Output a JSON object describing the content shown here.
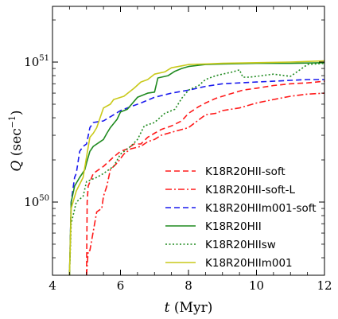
{
  "chart_data": {
    "type": "line",
    "title": "",
    "xlabel": "t (Myr)",
    "ylabel": "Q (sec−1)",
    "x_tick_labels": [
      "4",
      "6",
      "8",
      "10",
      "12"
    ],
    "x_ticks": [
      4,
      6,
      8,
      10,
      12
    ],
    "y_tick_labels": [
      {
        "base": "10",
        "exp": "50",
        "value": 1e+50
      },
      {
        "base": "10",
        "exp": "51",
        "value": 1e+51
      }
    ],
    "xlim": [
      4,
      12
    ],
    "ylim": [
      3e+49,
      2.5e+51
    ],
    "y_scale": "log",
    "grid": false,
    "legend_position": "lower-right",
    "series": [
      {
        "name": "K18R20HII-soft",
        "color": "#ff1a1a",
        "style": "dashed",
        "points": [
          [
            5.0,
            3e+49
          ],
          [
            5.02,
            1e+50
          ],
          [
            5.05,
            1.3e+50
          ],
          [
            5.2,
            1.6e+50
          ],
          [
            5.5,
            1.8e+50
          ],
          [
            5.8,
            2.1e+50
          ],
          [
            6.0,
            2.3e+50
          ],
          [
            6.2,
            2.4e+50
          ],
          [
            6.4,
            2.6e+50
          ],
          [
            6.6,
            2.6e+50
          ],
          [
            6.8,
            2.9e+50
          ],
          [
            7.0,
            3.1e+50
          ],
          [
            7.2,
            3.3e+50
          ],
          [
            7.5,
            3.5e+50
          ],
          [
            7.8,
            3.8e+50
          ],
          [
            8.0,
            4.3e+50
          ],
          [
            8.3,
            4.8e+50
          ],
          [
            8.5,
            5.1e+50
          ],
          [
            8.8,
            5.5e+50
          ],
          [
            9.0,
            5.7e+50
          ],
          [
            9.3,
            6e+50
          ],
          [
            9.6,
            6.3e+50
          ],
          [
            10.0,
            6.5e+50
          ],
          [
            10.5,
            6.8e+50
          ],
          [
            11.0,
            7e+50
          ],
          [
            11.5,
            7.1e+50
          ],
          [
            12.0,
            7.3e+50
          ]
        ]
      },
      {
        "name": "K18R20HII-soft-L",
        "color": "#ff1a1a",
        "style": "dashdot",
        "points": [
          [
            5.0,
            3e+49
          ],
          [
            5.05,
            4.5e+49
          ],
          [
            5.1,
            4.5e+49
          ],
          [
            5.3,
            8.5e+49
          ],
          [
            5.45,
            9e+49
          ],
          [
            5.5,
            1.1e+50
          ],
          [
            5.6,
            1.3e+50
          ],
          [
            5.7,
            1.7e+50
          ],
          [
            5.9,
            1.9e+50
          ],
          [
            6.1,
            2.2e+50
          ],
          [
            6.3,
            2.4e+50
          ],
          [
            6.6,
            2.5e+50
          ],
          [
            6.8,
            2.7e+50
          ],
          [
            7.0,
            2.8e+50
          ],
          [
            7.2,
            3e+50
          ],
          [
            7.6,
            3.2e+50
          ],
          [
            8.0,
            3.4e+50
          ],
          [
            8.2,
            3.7e+50
          ],
          [
            8.5,
            4.2e+50
          ],
          [
            8.8,
            4.3e+50
          ],
          [
            9.0,
            4.5e+50
          ],
          [
            9.5,
            4.7e+50
          ],
          [
            10.0,
            5.1e+50
          ],
          [
            10.5,
            5.4e+50
          ],
          [
            11.0,
            5.7e+50
          ],
          [
            11.5,
            5.9e+50
          ],
          [
            12.0,
            6e+50
          ]
        ]
      },
      {
        "name": "K18R20HIIm001-soft",
        "color": "#1a1aee",
        "style": "dashed",
        "points": [
          [
            4.5,
            3e+49
          ],
          [
            4.55,
            1e+50
          ],
          [
            4.65,
            1.5e+50
          ],
          [
            4.7,
            1.6e+50
          ],
          [
            4.8,
            2.3e+50
          ],
          [
            4.9,
            2.5e+50
          ],
          [
            5.0,
            2.6e+50
          ],
          [
            5.1,
            3.4e+50
          ],
          [
            5.2,
            3.7e+50
          ],
          [
            5.5,
            3.8e+50
          ],
          [
            5.8,
            4.2e+50
          ],
          [
            6.0,
            4.5e+50
          ],
          [
            6.3,
            4.8e+50
          ],
          [
            6.6,
            5.1e+50
          ],
          [
            7.0,
            5.6e+50
          ],
          [
            7.5,
            6e+50
          ],
          [
            8.0,
            6.3e+50
          ],
          [
            8.5,
            6.7e+50
          ],
          [
            9.0,
            7e+50
          ],
          [
            9.5,
            7.1e+50
          ],
          [
            10.0,
            7.2e+50
          ],
          [
            10.5,
            7.3e+50
          ],
          [
            11.0,
            7.4e+50
          ],
          [
            11.5,
            7.5e+50
          ],
          [
            12.0,
            7.5e+50
          ]
        ]
      },
      {
        "name": "K18R20HII",
        "color": "#1f8a1f",
        "style": "solid",
        "points": [
          [
            4.5,
            3e+49
          ],
          [
            4.55,
            1e+50
          ],
          [
            4.65,
            1.3e+50
          ],
          [
            4.8,
            1.5e+50
          ],
          [
            4.95,
            1.7e+50
          ],
          [
            5.0,
            1.9e+50
          ],
          [
            5.1,
            2.3e+50
          ],
          [
            5.2,
            2.5e+50
          ],
          [
            5.5,
            2.8e+50
          ],
          [
            5.6,
            3.1e+50
          ],
          [
            5.7,
            3.4e+50
          ],
          [
            5.9,
            3.9e+50
          ],
          [
            6.0,
            4.4e+50
          ],
          [
            6.2,
            4.6e+50
          ],
          [
            6.5,
            5.6e+50
          ],
          [
            6.8,
            6e+50
          ],
          [
            7.0,
            6.1e+50
          ],
          [
            7.1,
            7.7e+50
          ],
          [
            7.4,
            8e+50
          ],
          [
            7.6,
            8.6e+50
          ],
          [
            7.8,
            9e+50
          ],
          [
            8.0,
            9.3e+50
          ],
          [
            8.5,
            9.6e+50
          ],
          [
            9.0,
            9.7e+50
          ],
          [
            10.0,
            9.8e+50
          ],
          [
            11.0,
            9.8e+50
          ],
          [
            12.0,
            9.9e+50
          ]
        ]
      },
      {
        "name": "K18R20HIIsw",
        "color": "#1f8a1f",
        "style": "dotted",
        "points": [
          [
            4.5,
            3e+49
          ],
          [
            4.55,
            7e+49
          ],
          [
            4.7,
            1e+50
          ],
          [
            4.9,
            1.1e+50
          ],
          [
            5.0,
            1.4e+50
          ],
          [
            5.3,
            1.5e+50
          ],
          [
            5.5,
            1.6e+50
          ],
          [
            5.8,
            1.8e+50
          ],
          [
            6.0,
            2.2e+50
          ],
          [
            6.3,
            2.5e+50
          ],
          [
            6.5,
            2.8e+50
          ],
          [
            6.7,
            3.5e+50
          ],
          [
            7.0,
            3.7e+50
          ],
          [
            7.3,
            4.3e+50
          ],
          [
            7.6,
            4.6e+50
          ],
          [
            7.8,
            5.5e+50
          ],
          [
            8.0,
            6.3e+50
          ],
          [
            8.3,
            6.8e+50
          ],
          [
            8.5,
            7.5e+50
          ],
          [
            8.8,
            8e+50
          ],
          [
            9.0,
            8.2e+50
          ],
          [
            9.3,
            8.5e+50
          ],
          [
            9.5,
            8.8e+50
          ],
          [
            9.6,
            7.8e+50
          ],
          [
            9.8,
            7.8e+50
          ],
          [
            10.0,
            7.9e+50
          ],
          [
            10.5,
            8.2e+50
          ],
          [
            11.0,
            7.9e+50
          ],
          [
            11.5,
            9.6e+50
          ],
          [
            12.0,
            9.8e+50
          ]
        ]
      },
      {
        "name": "K18R20HIIm001",
        "color": "#c9c91a",
        "style": "solid",
        "points": [
          [
            4.5,
            3e+49
          ],
          [
            4.55,
            9e+49
          ],
          [
            4.7,
            1.2e+50
          ],
          [
            4.9,
            1.5e+50
          ],
          [
            5.0,
            2.1e+50
          ],
          [
            5.1,
            2.9e+50
          ],
          [
            5.2,
            3.1e+50
          ],
          [
            5.3,
            3.4e+50
          ],
          [
            5.5,
            4.7e+50
          ],
          [
            5.7,
            5e+50
          ],
          [
            5.8,
            5.4e+50
          ],
          [
            6.1,
            5.7e+50
          ],
          [
            6.4,
            6.5e+50
          ],
          [
            6.6,
            7.2e+50
          ],
          [
            6.8,
            7.5e+50
          ],
          [
            7.0,
            8.2e+50
          ],
          [
            7.3,
            8.5e+50
          ],
          [
            7.5,
            9.1e+50
          ],
          [
            7.8,
            9.4e+50
          ],
          [
            8.0,
            9.6e+50
          ],
          [
            8.5,
            9.7e+50
          ],
          [
            9.0,
            9.8e+50
          ],
          [
            10.0,
            9.9e+50
          ],
          [
            11.0,
            1e+51
          ],
          [
            12.0,
            1.02e+51
          ]
        ]
      }
    ]
  }
}
